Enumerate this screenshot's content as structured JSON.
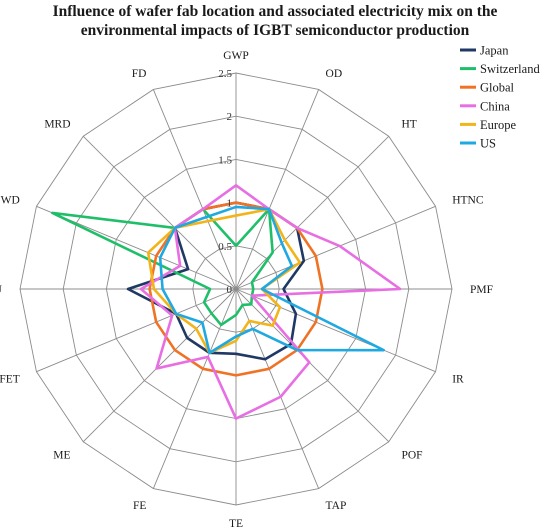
{
  "chart_data": {
    "type": "radar",
    "title_lines": [
      "Influence of wafer fab location and associated electricity mix on the",
      "environmental impacts of IGBT semiconductor production"
    ],
    "axes": [
      "GWP",
      "OD",
      "HT",
      "HTNC",
      "PMF",
      "IR",
      "POF",
      "TAP",
      "TE",
      "FE",
      "ME",
      "FET",
      "LU",
      "WD",
      "MRD",
      "FD"
    ],
    "tick_values": [
      0,
      0.5,
      1,
      1.5,
      2,
      2.5
    ],
    "tick_labels": [
      "0",
      "0.5",
      "1",
      "1.5",
      "2",
      "2.5"
    ],
    "range": [
      0,
      2.5
    ],
    "legend_position": "top-right",
    "series": [
      {
        "name": "Japan",
        "color": "#1f3864",
        "values": [
          1.0,
          1.0,
          1.0,
          0.85,
          0.55,
          0.75,
          0.9,
          0.88,
          0.75,
          0.8,
          0.8,
          0.75,
          1.25,
          0.6,
          1.0,
          1.0
        ]
      },
      {
        "name": "Switzerland",
        "color": "#1fbf6a",
        "values": [
          0.5,
          1.0,
          0.6,
          0.2,
          0.2,
          0.2,
          0.25,
          0.2,
          0.3,
          0.45,
          0.4,
          0.4,
          0.3,
          2.3,
          1.0,
          1.0
        ]
      },
      {
        "name": "Global",
        "color": "#f07224",
        "values": [
          1.0,
          1.0,
          1.0,
          1.0,
          1.0,
          1.0,
          1.0,
          1.0,
          1.0,
          1.0,
          1.0,
          1.0,
          1.0,
          1.0,
          1.0,
          1.0
        ]
      },
      {
        "name": "China",
        "color": "#e86ee3",
        "values": [
          1.2,
          1.0,
          1.0,
          1.3,
          1.9,
          0.2,
          1.2,
          1.35,
          1.5,
          0.85,
          1.3,
          0.8,
          1.1,
          0.7,
          1.0,
          1.0
        ]
      },
      {
        "name": "Europe",
        "color": "#f2b419",
        "values": [
          0.85,
          1.0,
          0.8,
          0.8,
          0.3,
          0.55,
          0.6,
          0.4,
          0.6,
          0.8,
          0.65,
          0.75,
          0.95,
          1.1,
          1.0,
          0.85
        ]
      },
      {
        "name": "US",
        "color": "#1fa9e0",
        "values": [
          0.95,
          1.0,
          0.75,
          0.7,
          0.3,
          1.85,
          1.0,
          0.5,
          0.55,
          0.8,
          0.55,
          0.75,
          0.85,
          0.95,
          1.0,
          0.9
        ]
      }
    ],
    "grid_color": "#8c8c8c"
  }
}
